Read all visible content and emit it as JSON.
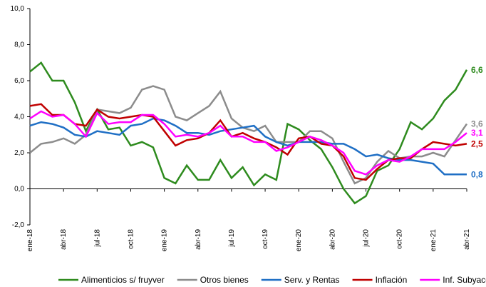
{
  "chart_data": {
    "type": "line",
    "categories": [
      "ene-18",
      null,
      null,
      "abr-18",
      null,
      null,
      "jul-18",
      null,
      null,
      "oct-18",
      null,
      null,
      "ene-19",
      null,
      null,
      "abr-19",
      null,
      null,
      "jul-19",
      null,
      null,
      "oct-19",
      null,
      null,
      "ene-20",
      null,
      null,
      "abr-20",
      null,
      null,
      "jul-20",
      null,
      null,
      "oct-20",
      null,
      null,
      "ene-21",
      null,
      null,
      "abr-21"
    ],
    "ylim": [
      -2,
      10
    ],
    "yticks": [
      {
        "value": -2,
        "label": "-2,0"
      },
      {
        "value": 0,
        "label": "0,0"
      },
      {
        "value": 2,
        "label": "2,0"
      },
      {
        "value": 4,
        "label": "4,0"
      },
      {
        "value": 6,
        "label": "6,0"
      },
      {
        "value": 8,
        "label": "8,0"
      },
      {
        "value": 10,
        "label": "10,0"
      }
    ],
    "legend": "bottom",
    "series": [
      {
        "name": "Alimenticios s/ fruyver",
        "color": "#2e8b1e",
        "values": [
          6.5,
          7.0,
          6.0,
          6.0,
          4.8,
          3.2,
          4.4,
          3.3,
          3.4,
          2.4,
          2.6,
          2.3,
          0.6,
          0.3,
          1.3,
          0.5,
          0.5,
          1.6,
          0.6,
          1.2,
          0.2,
          0.8,
          0.5,
          3.6,
          3.3,
          2.7,
          2.2,
          1.2,
          0.0,
          -0.8,
          -0.4,
          1.0,
          1.3,
          2.2,
          3.7,
          3.3,
          3.9,
          4.9,
          5.5,
          6.6
        ],
        "value_labels": [
          null,
          null,
          null,
          null,
          null,
          null,
          null,
          null,
          null,
          null,
          null,
          null,
          null,
          null,
          null,
          null,
          null,
          null,
          null,
          null,
          null,
          null,
          null,
          null,
          null,
          null,
          null,
          null,
          null,
          null,
          null,
          null,
          null,
          null,
          null,
          null,
          null,
          null,
          null,
          "6,6"
        ]
      },
      {
        "name": "Otros bienes",
        "color": "#8c8c8c",
        "values": [
          2.0,
          2.5,
          2.6,
          2.8,
          2.5,
          3.0,
          4.4,
          4.3,
          4.2,
          4.5,
          5.5,
          5.7,
          5.5,
          4.0,
          3.8,
          4.2,
          4.6,
          5.4,
          3.9,
          3.4,
          3.2,
          3.5,
          2.6,
          2.6,
          2.6,
          3.2,
          3.2,
          2.8,
          1.5,
          0.3,
          0.6,
          1.5,
          2.1,
          1.7,
          1.8,
          1.8,
          2.0,
          1.8,
          2.7,
          3.6
        ],
        "value_labels": [
          null,
          null,
          null,
          null,
          null,
          null,
          null,
          null,
          null,
          null,
          null,
          null,
          null,
          null,
          null,
          null,
          null,
          null,
          null,
          null,
          null,
          null,
          null,
          null,
          null,
          null,
          null,
          null,
          null,
          null,
          null,
          null,
          null,
          null,
          null,
          null,
          null,
          null,
          null,
          "3,6"
        ]
      },
      {
        "name": "Serv. y Rentas",
        "color": "#1f6fc5",
        "values": [
          3.5,
          3.7,
          3.6,
          3.4,
          3.0,
          2.9,
          3.2,
          3.1,
          3.0,
          3.5,
          3.6,
          3.9,
          3.8,
          3.5,
          3.1,
          3.1,
          3.0,
          3.2,
          3.3,
          3.4,
          3.5,
          2.9,
          2.6,
          2.4,
          2.6,
          2.6,
          2.6,
          2.5,
          2.5,
          2.2,
          1.8,
          1.9,
          1.7,
          1.6,
          1.6,
          1.5,
          1.4,
          0.8,
          0.8,
          0.8
        ],
        "value_labels": [
          null,
          null,
          null,
          null,
          null,
          null,
          null,
          null,
          null,
          null,
          null,
          null,
          null,
          null,
          null,
          null,
          null,
          null,
          null,
          null,
          null,
          null,
          null,
          null,
          null,
          null,
          null,
          null,
          null,
          null,
          null,
          null,
          null,
          null,
          null,
          null,
          null,
          null,
          null,
          "0,8"
        ]
      },
      {
        "name": "Inflación",
        "color": "#c00000",
        "values": [
          4.6,
          4.7,
          4.1,
          4.1,
          3.6,
          3.5,
          4.4,
          4.0,
          3.9,
          4.0,
          4.1,
          4.0,
          3.2,
          2.4,
          2.7,
          2.8,
          3.1,
          3.8,
          2.9,
          3.1,
          2.8,
          2.6,
          2.3,
          1.9,
          2.8,
          2.9,
          2.5,
          2.4,
          1.8,
          0.6,
          0.5,
          1.1,
          1.6,
          1.7,
          1.7,
          2.2,
          2.6,
          2.5,
          2.4,
          2.5
        ],
        "value_labels": [
          null,
          null,
          null,
          null,
          null,
          null,
          null,
          null,
          null,
          null,
          null,
          null,
          null,
          null,
          null,
          null,
          null,
          null,
          null,
          null,
          null,
          null,
          null,
          null,
          null,
          null,
          null,
          null,
          null,
          null,
          null,
          null,
          null,
          null,
          null,
          null,
          null,
          null,
          null,
          "2,5"
        ]
      },
      {
        "name": "Inf. Subyacente",
        "color": "#ff00ff",
        "values": [
          3.9,
          4.3,
          4.0,
          4.1,
          3.6,
          2.9,
          4.2,
          3.6,
          3.7,
          3.7,
          4.1,
          4.1,
          3.6,
          2.9,
          3.0,
          2.9,
          3.1,
          3.5,
          2.9,
          2.9,
          2.6,
          2.6,
          2.1,
          2.3,
          2.6,
          2.9,
          2.7,
          2.4,
          2.0,
          1.0,
          0.8,
          1.3,
          1.6,
          1.5,
          1.8,
          2.2,
          2.2,
          2.2,
          2.6,
          3.1
        ],
        "value_labels": [
          null,
          null,
          null,
          null,
          null,
          null,
          null,
          null,
          null,
          null,
          null,
          null,
          null,
          null,
          null,
          null,
          null,
          null,
          null,
          null,
          null,
          null,
          null,
          null,
          null,
          null,
          null,
          null,
          null,
          null,
          null,
          null,
          null,
          null,
          null,
          null,
          null,
          null,
          null,
          "3,1"
        ]
      }
    ]
  }
}
